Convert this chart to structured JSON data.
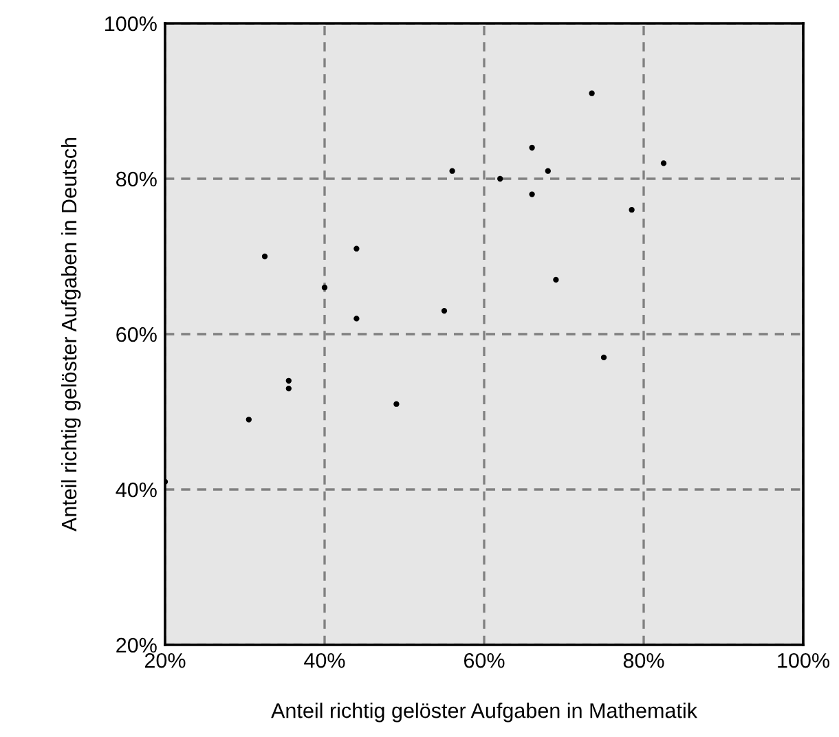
{
  "chart_data": {
    "type": "scatter",
    "xlabel": "Anteil richtig gelöster Aufgaben in Mathematik",
    "ylabel": "Anteil richtig gelöster Aufgaben in Deutsch",
    "x": [
      20,
      30.5,
      32.5,
      35.5,
      35.5,
      40,
      44,
      44,
      49,
      55,
      56,
      62,
      66,
      66,
      68,
      69,
      73.5,
      75,
      78.5,
      82.5
    ],
    "series": [
      {
        "color": "#000000",
        "values": [
          41,
          49,
          70,
          54,
          53,
          66,
          71,
          62,
          51,
          63,
          81,
          80,
          84,
          78,
          81,
          67,
          91,
          57,
          76,
          82
        ]
      }
    ],
    "marker": "circle",
    "grid": true,
    "xlim": [
      20,
      100
    ],
    "xticks": [
      {
        "value": 20,
        "label": "20%"
      },
      {
        "value": 40,
        "label": "40%"
      },
      {
        "value": 60,
        "label": "60%"
      },
      {
        "value": 80,
        "label": "80%"
      },
      {
        "value": 100,
        "label": "100%"
      }
    ],
    "ylim": [
      20,
      100
    ],
    "yticks": [
      {
        "value": 20,
        "label": "20%"
      },
      {
        "value": 40,
        "label": "40%"
      },
      {
        "value": 60,
        "label": "60%"
      },
      {
        "value": 80,
        "label": "80%"
      },
      {
        "value": 100,
        "label": "100%"
      }
    ]
  }
}
